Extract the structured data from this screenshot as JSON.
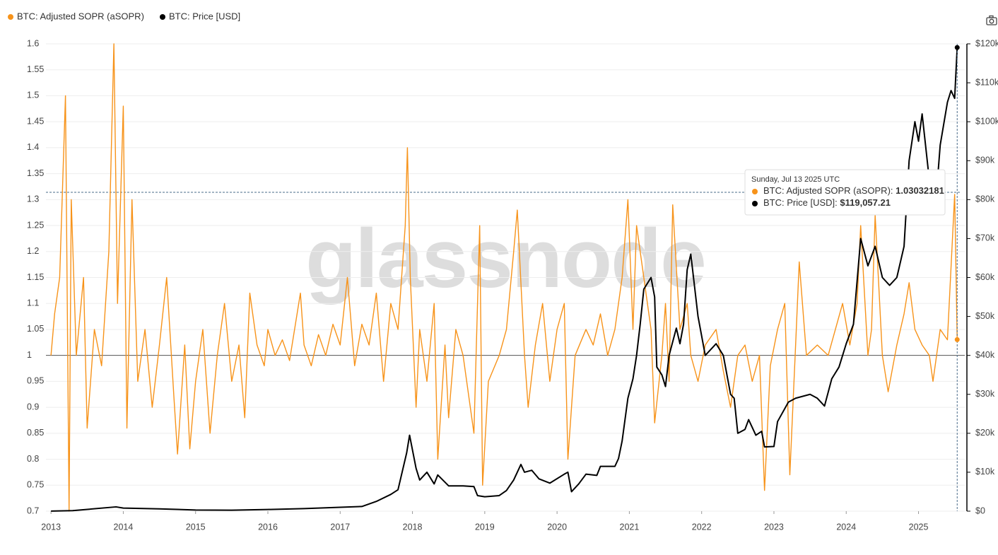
{
  "chart_data": {
    "type": "line",
    "watermark": "glassnode",
    "xlim": [
      2012.93,
      2025.64
    ],
    "xticks": [
      2013,
      2014,
      2015,
      2016,
      2017,
      2018,
      2019,
      2020,
      2021,
      2022,
      2023,
      2024,
      2025
    ],
    "ylim": [
      0.7,
      1.6
    ],
    "yticks": [
      0.7,
      0.75,
      0.8,
      0.85,
      0.9,
      0.95,
      1,
      1.05,
      1.1,
      1.15,
      1.2,
      1.25,
      1.3,
      1.35,
      1.4,
      1.45,
      1.5,
      1.55,
      1.6
    ],
    "y2lim": [
      0,
      120000
    ],
    "y2ticks": [
      {
        "value": 0,
        "label": "$0"
      },
      {
        "value": 10000,
        "label": "$10k"
      },
      {
        "value": 20000,
        "label": "$20k"
      },
      {
        "value": 30000,
        "label": "$30k"
      },
      {
        "value": 40000,
        "label": "$40k"
      },
      {
        "value": 50000,
        "label": "$50k"
      },
      {
        "value": 60000,
        "label": "$60k"
      },
      {
        "value": 70000,
        "label": "$70k"
      },
      {
        "value": 80000,
        "label": "$80k"
      },
      {
        "value": 90000,
        "label": "$90k"
      },
      {
        "value": 100000,
        "label": "$100k"
      },
      {
        "value": 110000,
        "label": "$110k"
      },
      {
        "value": 120000,
        "label": "$120k"
      }
    ],
    "grid": true,
    "reference_line": 1,
    "series": [
      {
        "name": "BTC: Adjusted SOPR (aSOPR)",
        "color": "#f7931a",
        "x": [
          2013.0,
          2013.05,
          2013.12,
          2013.2,
          2013.25,
          2013.28,
          2013.35,
          2013.45,
          2013.5,
          2013.6,
          2013.7,
          2013.8,
          2013.87,
          2013.92,
          2014.0,
          2014.05,
          2014.12,
          2014.2,
          2014.3,
          2014.4,
          2014.5,
          2014.6,
          2014.7,
          2014.75,
          2014.85,
          2014.92,
          2015.0,
          2015.1,
          2015.2,
          2015.3,
          2015.4,
          2015.5,
          2015.6,
          2015.68,
          2015.75,
          2015.85,
          2015.95,
          2016.0,
          2016.1,
          2016.2,
          2016.3,
          2016.45,
          2016.5,
          2016.6,
          2016.7,
          2016.8,
          2016.9,
          2017.0,
          2017.1,
          2017.2,
          2017.3,
          2017.4,
          2017.5,
          2017.6,
          2017.7,
          2017.8,
          2017.9,
          2017.93,
          2017.97,
          2018.05,
          2018.1,
          2018.2,
          2018.3,
          2018.35,
          2018.45,
          2018.5,
          2018.6,
          2018.7,
          2018.85,
          2018.93,
          2018.97,
          2019.05,
          2019.2,
          2019.3,
          2019.4,
          2019.45,
          2019.55,
          2019.6,
          2019.7,
          2019.8,
          2019.9,
          2020.0,
          2020.1,
          2020.15,
          2020.25,
          2020.4,
          2020.5,
          2020.6,
          2020.7,
          2020.8,
          2020.9,
          2020.98,
          2021.05,
          2021.1,
          2021.2,
          2021.3,
          2021.35,
          2021.45,
          2021.5,
          2021.55,
          2021.6,
          2021.7,
          2021.8,
          2021.85,
          2021.95,
          2022.05,
          2022.2,
          2022.3,
          2022.4,
          2022.45,
          2022.5,
          2022.6,
          2022.7,
          2022.8,
          2022.87,
          2022.95,
          2023.05,
          2023.15,
          2023.22,
          2023.3,
          2023.35,
          2023.45,
          2023.6,
          2023.75,
          2023.85,
          2023.95,
          2024.05,
          2024.15,
          2024.2,
          2024.3,
          2024.35,
          2024.4,
          2024.5,
          2024.58,
          2024.7,
          2024.8,
          2024.87,
          2024.95,
          2025.05,
          2025.15,
          2025.2,
          2025.3,
          2025.4,
          2025.5,
          2025.535
        ],
        "values": [
          1.0,
          1.08,
          1.15,
          1.5,
          0.7,
          1.3,
          1.0,
          1.15,
          0.86,
          1.05,
          0.98,
          1.2,
          1.6,
          1.1,
          1.48,
          0.86,
          1.3,
          0.95,
          1.05,
          0.9,
          1.02,
          1.15,
          0.92,
          0.81,
          1.02,
          0.82,
          0.95,
          1.05,
          0.85,
          1.0,
          1.1,
          0.95,
          1.02,
          0.88,
          1.12,
          1.02,
          0.98,
          1.05,
          1.0,
          1.03,
          0.99,
          1.12,
          1.02,
          0.98,
          1.04,
          1.0,
          1.06,
          1.02,
          1.15,
          0.98,
          1.06,
          1.02,
          1.12,
          0.95,
          1.1,
          1.05,
          1.25,
          1.4,
          1.15,
          0.9,
          1.05,
          0.95,
          1.1,
          0.8,
          1.02,
          0.88,
          1.05,
          1.0,
          0.85,
          1.25,
          0.75,
          0.95,
          1.0,
          1.05,
          1.2,
          1.28,
          1.0,
          0.9,
          1.02,
          1.1,
          0.95,
          1.05,
          1.1,
          0.8,
          1.0,
          1.05,
          1.02,
          1.08,
          1.0,
          1.05,
          1.15,
          1.3,
          1.05,
          1.25,
          1.15,
          1.05,
          0.87,
          1.0,
          1.1,
          0.95,
          1.29,
          1.05,
          1.1,
          1.0,
          0.95,
          1.02,
          1.05,
          0.97,
          0.9,
          0.95,
          1.0,
          1.02,
          0.95,
          1.0,
          0.74,
          0.98,
          1.05,
          1.1,
          0.77,
          1.02,
          1.18,
          1.0,
          1.02,
          1.0,
          1.05,
          1.1,
          1.02,
          1.1,
          1.25,
          1.0,
          1.05,
          1.27,
          1.0,
          0.93,
          1.02,
          1.08,
          1.14,
          1.05,
          1.02,
          1.0,
          0.95,
          1.05,
          1.03,
          1.31,
          1.03032181
        ]
      },
      {
        "name": "BTC: Price [USD]",
        "color": "#000000",
        "axis": "y2",
        "x": [
          2013.0,
          2013.3,
          2013.9,
          2014.0,
          2014.5,
          2015.0,
          2015.5,
          2016.0,
          2016.5,
          2017.0,
          2017.3,
          2017.5,
          2017.7,
          2017.8,
          2017.92,
          2017.96,
          2018.05,
          2018.1,
          2018.2,
          2018.3,
          2018.35,
          2018.5,
          2018.7,
          2018.85,
          2018.9,
          2019.0,
          2019.2,
          2019.3,
          2019.4,
          2019.5,
          2019.55,
          2019.65,
          2019.75,
          2019.9,
          2020.1,
          2020.15,
          2020.2,
          2020.3,
          2020.4,
          2020.55,
          2020.6,
          2020.8,
          2020.85,
          2020.9,
          2020.98,
          2021.05,
          2021.1,
          2021.15,
          2021.2,
          2021.3,
          2021.35,
          2021.38,
          2021.45,
          2021.5,
          2021.55,
          2021.65,
          2021.7,
          2021.75,
          2021.8,
          2021.85,
          2021.95,
          2022.05,
          2022.2,
          2022.3,
          2022.4,
          2022.45,
          2022.5,
          2022.6,
          2022.65,
          2022.75,
          2022.83,
          2022.87,
          2023.0,
          2023.05,
          2023.2,
          2023.3,
          2023.5,
          2023.6,
          2023.7,
          2023.8,
          2023.9,
          2024.0,
          2024.1,
          2024.2,
          2024.3,
          2024.4,
          2024.5,
          2024.6,
          2024.7,
          2024.8,
          2024.87,
          2024.95,
          2025.0,
          2025.05,
          2025.15,
          2025.25,
          2025.3,
          2025.4,
          2025.45,
          2025.5,
          2025.535
        ],
        "values": [
          13,
          130,
          1100,
          800,
          600,
          300,
          250,
          430,
          650,
          1000,
          1200,
          2500,
          4300,
          5500,
          15000,
          19500,
          11000,
          8000,
          10000,
          7000,
          9300,
          6500,
          6500,
          6300,
          4000,
          3700,
          4000,
          5300,
          8000,
          12000,
          10000,
          10500,
          8300,
          7200,
          9500,
          10000,
          5000,
          7000,
          9500,
          9200,
          11500,
          11500,
          13500,
          18000,
          29000,
          34000,
          40000,
          48000,
          57000,
          60000,
          55000,
          37000,
          35000,
          32000,
          40000,
          47000,
          43000,
          48000,
          62000,
          66000,
          50000,
          40000,
          43000,
          40000,
          30000,
          29000,
          20000,
          21000,
          23500,
          19500,
          20500,
          16500,
          16600,
          23000,
          28000,
          29000,
          30000,
          29000,
          27000,
          34000,
          37000,
          43000,
          48000,
          70000,
          63000,
          68000,
          60000,
          58000,
          60000,
          68000,
          90000,
          100000,
          95000,
          102000,
          85000,
          82000,
          94000,
          105000,
          108000,
          106000,
          119057.21
        ]
      }
    ],
    "tooltip": {
      "date": "Sunday, Jul 13 2025 UTC",
      "items": [
        {
          "label": "BTC: Adjusted SOPR (aSOPR):",
          "value": 1.03032181
        },
        {
          "label": "BTC: Price [USD]:",
          "value": 119057.21,
          "value_label": "$119,057.21"
        }
      ]
    }
  }
}
